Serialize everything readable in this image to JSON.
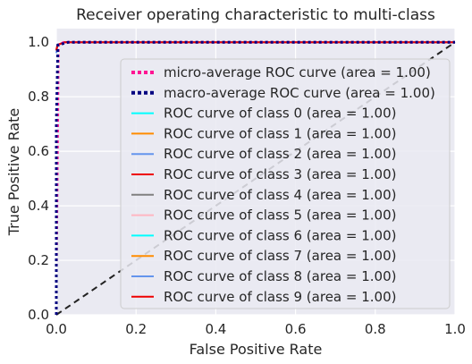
{
  "chart_data": {
    "type": "line",
    "title": "Receiver operating characteristic to multi-class",
    "xlabel": "False Positive Rate",
    "ylabel": "True Positive Rate",
    "xlim": [
      0.0,
      1.0
    ],
    "ylim": [
      0.0,
      1.05
    ],
    "xticks": [
      "0.0",
      "0.2",
      "0.4",
      "0.6",
      "0.8",
      "1.0"
    ],
    "yticks": [
      "0.0",
      "0.2",
      "0.4",
      "0.6",
      "0.8",
      "1.0"
    ],
    "xtick_values": [
      0.0,
      0.2,
      0.4,
      0.6,
      0.8,
      1.0
    ],
    "ytick_values": [
      0.0,
      0.2,
      0.4,
      0.6,
      0.8,
      1.0
    ],
    "grid": true,
    "legend_position": "lower right",
    "chance_line": {
      "x": [
        0,
        1
      ],
      "y": [
        0,
        1
      ],
      "color": "#222222",
      "dash": "dashed"
    },
    "series": [
      {
        "name": "micro-average ROC curve (area = 1.00)",
        "color": "#ff1493",
        "style": "dotted",
        "x": [
          0,
          0,
          0.005,
          0.02,
          1.0
        ],
        "y": [
          0.0,
          0.15,
          0.99,
          1.0,
          1.0
        ]
      },
      {
        "name": "macro-average ROC curve (area = 1.00)",
        "color": "#000080",
        "style": "dotted",
        "x": [
          0,
          0,
          0.004,
          0.03,
          1.0
        ],
        "y": [
          0.0,
          0.7,
          0.99,
          1.0,
          1.0
        ]
      },
      {
        "name": "ROC curve of class 0 (area = 1.00)",
        "color": "#00ffff",
        "style": "solid",
        "x": [
          0,
          0.003,
          0.02,
          1.0
        ],
        "y": [
          0.97,
          0.99,
          1.0,
          1.0
        ]
      },
      {
        "name": "ROC curve of class 1 (area = 1.00)",
        "color": "#ff8c00",
        "style": "solid",
        "x": [
          0,
          0.003,
          0.02,
          1.0
        ],
        "y": [
          0.97,
          0.99,
          1.0,
          1.0
        ]
      },
      {
        "name": "ROC curve of class 2 (area = 1.00)",
        "color": "#6495ed",
        "style": "solid",
        "x": [
          0,
          0.003,
          0.02,
          1.0
        ],
        "y": [
          0.96,
          0.99,
          1.0,
          1.0
        ]
      },
      {
        "name": "ROC curve of class 3 (area = 1.00)",
        "color": "#ee0000",
        "style": "solid",
        "x": [
          0,
          0.003,
          0.02,
          1.0
        ],
        "y": [
          0.97,
          0.99,
          1.0,
          1.0
        ]
      },
      {
        "name": "ROC curve of class 4 (area = 1.00)",
        "color": "#808080",
        "style": "solid",
        "x": [
          0,
          0.003,
          0.02,
          1.0
        ],
        "y": [
          0.97,
          0.99,
          1.0,
          1.0
        ]
      },
      {
        "name": "ROC curve of class 5 (area = 1.00)",
        "color": "#ffb6c1",
        "style": "solid",
        "x": [
          0,
          0.003,
          0.02,
          1.0
        ],
        "y": [
          0.97,
          0.99,
          1.0,
          1.0
        ]
      },
      {
        "name": "ROC curve of class 6 (area = 1.00)",
        "color": "#00ffff",
        "style": "solid",
        "x": [
          0,
          0.003,
          0.02,
          1.0
        ],
        "y": [
          0.97,
          0.99,
          1.0,
          1.0
        ]
      },
      {
        "name": "ROC curve of class 7 (area = 1.00)",
        "color": "#ff8c00",
        "style": "solid",
        "x": [
          0,
          0.003,
          0.02,
          1.0
        ],
        "y": [
          0.97,
          0.99,
          1.0,
          1.0
        ]
      },
      {
        "name": "ROC curve of class 8 (area = 1.00)",
        "color": "#6495ed",
        "style": "solid",
        "x": [
          0,
          0.003,
          0.02,
          1.0
        ],
        "y": [
          0.97,
          0.99,
          1.0,
          1.0
        ]
      },
      {
        "name": "ROC curve of class 9 (area = 1.00)",
        "color": "#ee0000",
        "style": "solid",
        "x": [
          0,
          0.003,
          0.02,
          1.0
        ],
        "y": [
          0.97,
          0.99,
          1.0,
          1.0
        ]
      }
    ]
  },
  "colors": {
    "plot_background": "#eaeaf2",
    "grid": "#ffffff",
    "text": "#262626"
  }
}
